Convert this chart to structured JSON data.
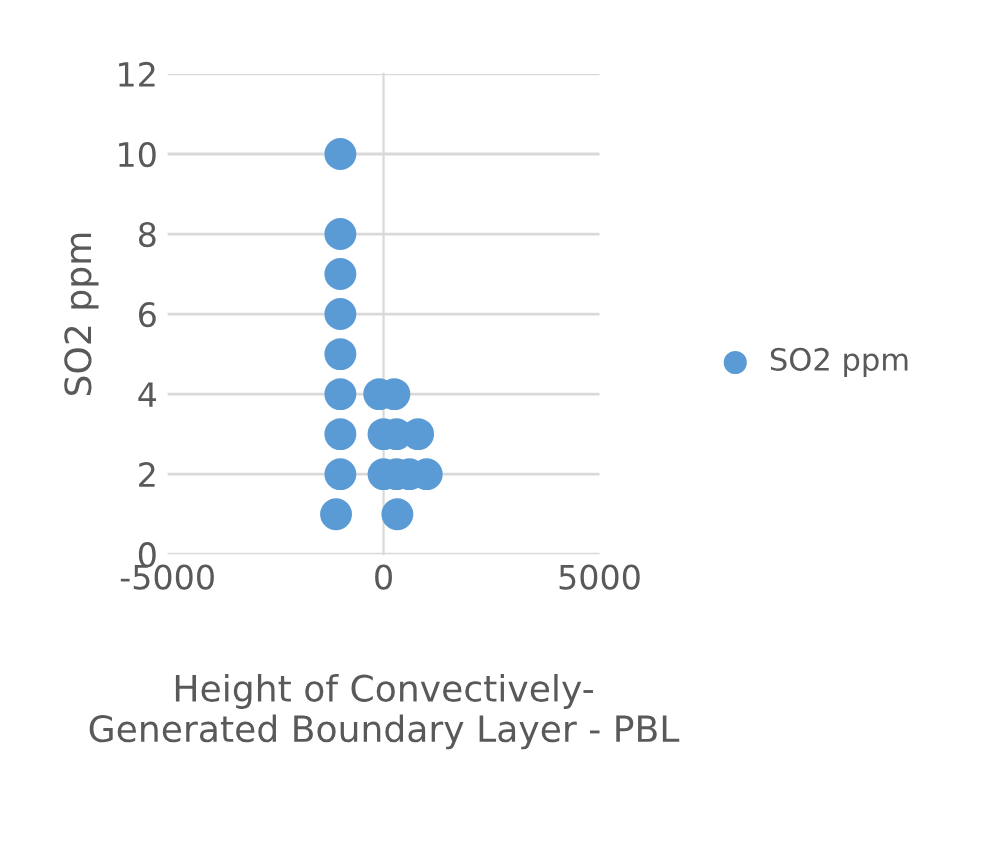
{
  "chart_data": {
    "type": "scatter",
    "xlabel": "Height of Convectively-\nGenerated Boundary Layer - PBL",
    "ylabel": "SO2 ppm",
    "series": [
      {
        "name": "SO2 ppm",
        "color": "#5b9bd5",
        "x": [
          -1000,
          -1000,
          -1000,
          -1000,
          -1000,
          -1000,
          -1000,
          -1000,
          -1100,
          -100,
          250,
          0,
          300,
          800,
          0,
          300,
          600,
          1000,
          320
        ],
        "values": [
          10,
          8,
          7,
          6,
          5,
          4,
          3,
          2,
          1,
          4,
          4,
          3,
          3,
          3,
          2,
          2,
          2,
          2,
          1
        ]
      }
    ],
    "xlim": [
      -5000,
      5000
    ],
    "xticks": [
      -5000,
      0,
      5000
    ],
    "ylim": [
      0,
      12
    ],
    "yticks": [
      0,
      2,
      4,
      6,
      8,
      10,
      12
    ],
    "grid": "y",
    "legend": "right",
    "marker": "circle"
  }
}
